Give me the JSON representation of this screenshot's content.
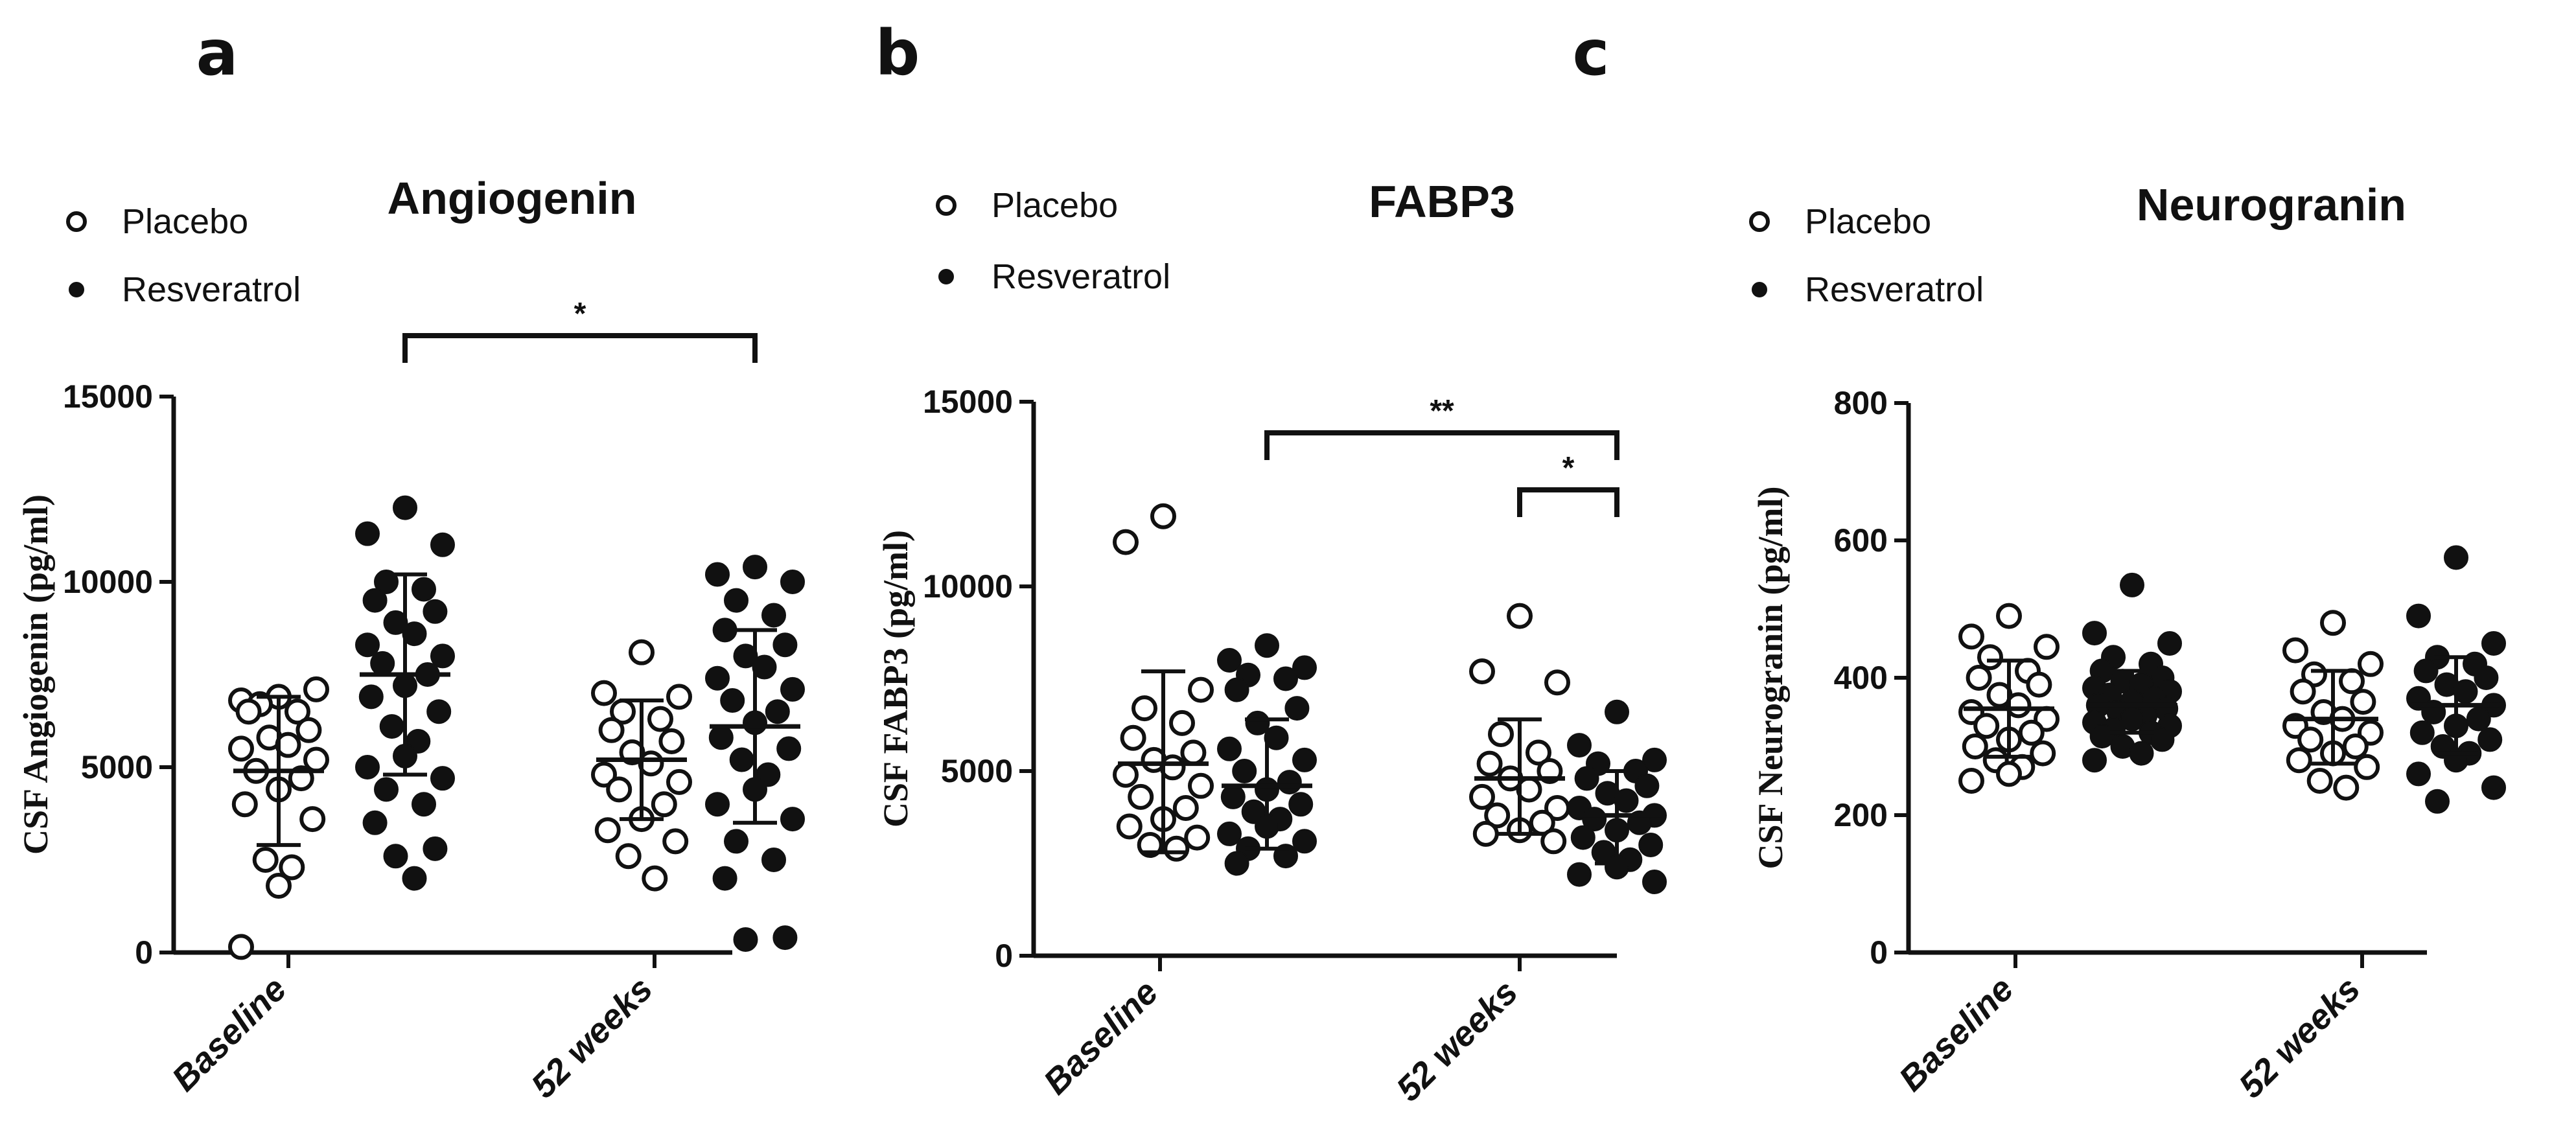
{
  "panels": [
    {
      "letter": "a"
    },
    {
      "letter": "b"
    },
    {
      "letter": "c"
    }
  ],
  "legend": {
    "placebo": "Placebo",
    "resveratrol": "Resveratrol"
  },
  "chart_data": [
    {
      "type": "scatter",
      "title": "Angiogenin",
      "ylabel": "CSF Angiogenin  (pg/ml)",
      "ylim": [
        0,
        15000
      ],
      "yticks": [
        0,
        5000,
        10000,
        15000
      ],
      "categories": [
        "Baseline",
        "52 weeks"
      ],
      "legend_position": "top-left",
      "series": [
        {
          "name": "Placebo",
          "marker": "open-circle",
          "groups": [
            {
              "category": "Baseline",
              "mean": 4900,
              "sd_low": 2900,
              "sd_high": 6900,
              "values": [
                6900,
                6800,
                7100,
                6700,
                6500,
                6500,
                6000,
                5800,
                5600,
                5500,
                5200,
                4900,
                4700,
                4400,
                4000,
                3600,
                2500,
                2300,
                1800,
                150
              ]
            },
            {
              "category": "52 weeks",
              "mean": 5200,
              "sd_low": 3600,
              "sd_high": 6800,
              "values": [
                8100,
                7000,
                6900,
                6500,
                6300,
                6000,
                5700,
                5400,
                5100,
                4800,
                4600,
                4400,
                4000,
                3600,
                3300,
                3000,
                2600,
                2000
              ]
            }
          ]
        },
        {
          "name": "Resveratrol",
          "marker": "filled-circle",
          "groups": [
            {
              "category": "Baseline",
              "mean": 7500,
              "sd_low": 4800,
              "sd_high": 10200,
              "values": [
                12000,
                11300,
                11000,
                10000,
                9800,
                9500,
                9200,
                8900,
                8600,
                8300,
                8000,
                7800,
                7500,
                7200,
                6900,
                6500,
                6100,
                5700,
                5300,
                5000,
                4700,
                4400,
                4000,
                3500,
                2800,
                2600,
                2000
              ]
            },
            {
              "category": "52 weeks",
              "mean": 6100,
              "sd_low": 3500,
              "sd_high": 8700,
              "values": [
                10400,
                10200,
                10000,
                9500,
                9100,
                8700,
                8300,
                8000,
                7700,
                7400,
                7100,
                6800,
                6500,
                6200,
                5800,
                5500,
                5200,
                4800,
                4400,
                4000,
                3600,
                3000,
                2500,
                2000,
                400,
                350
              ]
            }
          ]
        }
      ],
      "annotations": [
        {
          "label": "*",
          "from": "Baseline · Resveratrol",
          "to": "52 weeks · Resveratrol"
        }
      ]
    },
    {
      "type": "scatter",
      "title": "FABP3",
      "ylabel": "CSF FABP3  (pg/ml)",
      "ylim": [
        0,
        15000
      ],
      "yticks": [
        0,
        5000,
        10000,
        15000
      ],
      "categories": [
        "Baseline",
        "52 weeks"
      ],
      "legend_position": "top-left",
      "series": [
        {
          "name": "Placebo",
          "marker": "open-circle",
          "groups": [
            {
              "category": "Baseline",
              "mean": 5200,
              "sd_low": 2800,
              "sd_high": 7700,
              "values": [
                11900,
                11200,
                7200,
                6700,
                6300,
                5900,
                5500,
                5300,
                5100,
                4900,
                4600,
                4300,
                4000,
                3700,
                3500,
                3200,
                3000,
                2900
              ]
            },
            {
              "category": "52 weeks",
              "mean": 4800,
              "sd_low": 3300,
              "sd_high": 6400,
              "values": [
                9200,
                7700,
                7400,
                6000,
                5500,
                5200,
                5000,
                4800,
                4500,
                4300,
                4000,
                3800,
                3600,
                3400,
                3300,
                3100
              ]
            }
          ]
        },
        {
          "name": "Resveratrol",
          "marker": "filled-circle",
          "groups": [
            {
              "category": "Baseline",
              "mean": 4600,
              "sd_low": 2900,
              "sd_high": 6400,
              "values": [
                8400,
                8000,
                7800,
                7600,
                7500,
                7200,
                6700,
                6300,
                5900,
                5600,
                5300,
                5000,
                4700,
                4500,
                4300,
                4100,
                3900,
                3700,
                3500,
                3300,
                3100,
                2900,
                2700,
                2500
              ]
            },
            {
              "category": "52 weeks",
              "mean": 3800,
              "sd_low": 2500,
              "sd_high": 5000,
              "values": [
                6600,
                5700,
                5300,
                5200,
                5000,
                4800,
                4600,
                4400,
                4200,
                4000,
                3800,
                3700,
                3600,
                3400,
                3200,
                3000,
                2800,
                2600,
                2400,
                2200,
                2000
              ]
            }
          ]
        }
      ],
      "annotations": [
        {
          "label": "**",
          "from": "Baseline · Resveratrol",
          "to": "52 weeks · Resveratrol"
        },
        {
          "label": "*",
          "from": "52 weeks · Placebo",
          "to": "52 weeks · Resveratrol"
        }
      ]
    },
    {
      "type": "scatter",
      "title": "Neurogranin",
      "ylabel": "CSF Neurogranin (pg/ml)",
      "ylim": [
        0,
        800
      ],
      "yticks": [
        0,
        200,
        400,
        600,
        800
      ],
      "categories": [
        "Baseline",
        "52 weeks"
      ],
      "legend_position": "top-left",
      "series": [
        {
          "name": "Placebo",
          "marker": "open-circle",
          "groups": [
            {
              "category": "Baseline",
              "mean": 355,
              "sd_low": 285,
              "sd_high": 425,
              "values": [
                490,
                460,
                445,
                430,
                410,
                400,
                390,
                375,
                360,
                350,
                340,
                330,
                320,
                310,
                300,
                290,
                280,
                270,
                260,
                250
              ]
            },
            {
              "category": "52 weeks",
              "mean": 340,
              "sd_low": 275,
              "sd_high": 410,
              "values": [
                480,
                440,
                420,
                405,
                395,
                380,
                365,
                350,
                340,
                330,
                320,
                310,
                300,
                290,
                280,
                270,
                250,
                240
              ]
            }
          ]
        },
        {
          "name": "Resveratrol",
          "marker": "filled-circle",
          "groups": [
            {
              "category": "Baseline",
              "mean": 360,
              "sd_low": 320,
              "sd_high": 410,
              "values": [
                535,
                465,
                450,
                430,
                420,
                410,
                400,
                395,
                390,
                385,
                380,
                375,
                370,
                365,
                360,
                355,
                350,
                345,
                340,
                335,
                330,
                325,
                320,
                315,
                310,
                300,
                290,
                280
              ]
            },
            {
              "category": "52 weeks",
              "mean": 360,
              "sd_low": 290,
              "sd_high": 430,
              "values": [
                575,
                490,
                450,
                430,
                420,
                410,
                400,
                390,
                380,
                370,
                360,
                350,
                340,
                330,
                320,
                310,
                300,
                290,
                280,
                260,
                240,
                220
              ]
            }
          ]
        }
      ],
      "annotations": []
    }
  ]
}
